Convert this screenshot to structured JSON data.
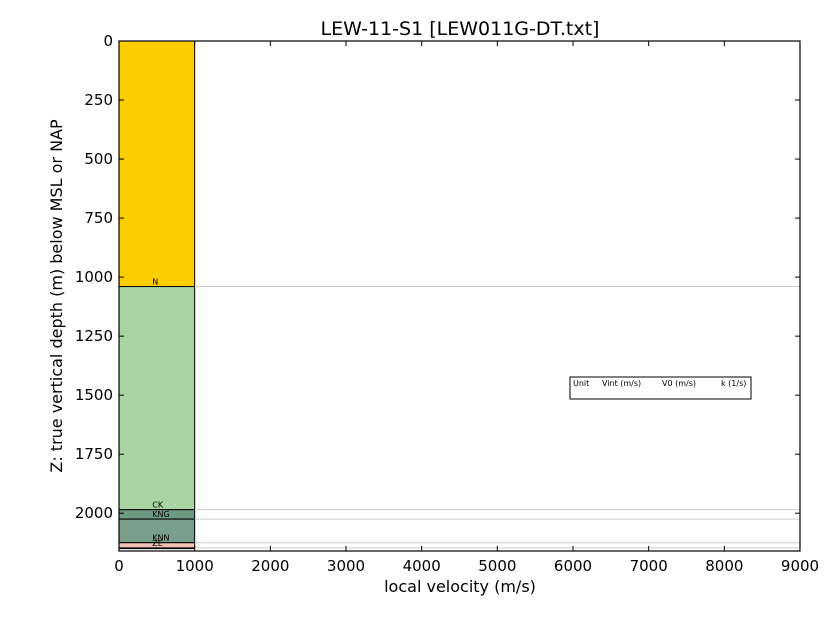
{
  "chart_data": {
    "type": "bar",
    "title": "LEW-11-S1 [LEW011G-DT.txt]",
    "xlabel": "local velocity (m/s)",
    "ylabel": "Z: true vertical depth (m) below MSL or NAP",
    "xlim": [
      0,
      9000
    ],
    "ylim": [
      2160,
      0
    ],
    "y_inverted": true,
    "grid": false,
    "x_ticks": [
      "0",
      "1000",
      "2000",
      "3000",
      "4000",
      "5000",
      "6000",
      "7000",
      "8000",
      "9000"
    ],
    "y_ticks": [
      "0",
      "250",
      "500",
      "750",
      "1000",
      "1250",
      "1500",
      "1750",
      "2000"
    ],
    "x_tick_values": [
      0,
      1000,
      2000,
      3000,
      4000,
      5000,
      6000,
      7000,
      8000,
      9000
    ],
    "y_tick_values": [
      0,
      250,
      500,
      750,
      1000,
      1250,
      1500,
      1750,
      2000
    ],
    "layers": [
      {
        "label": "",
        "top": 0,
        "base": 1040,
        "velocity": 1000,
        "color": "#fcce00"
      },
      {
        "label": "N",
        "top": 1040,
        "base": 1985,
        "velocity": 1000,
        "color": "#a8d5a2"
      },
      {
        "label": "CK",
        "top": 1985,
        "base": 2025,
        "velocity": 1000,
        "color": "#6d9b82"
      },
      {
        "label": "KNG",
        "top": 2025,
        "base": 2125,
        "velocity": 1000,
        "color": "#7a9e8c"
      },
      {
        "label": "KNN",
        "top": 2125,
        "base": 2147,
        "velocity": 1000,
        "color": "#f1c1b1"
      },
      {
        "label": "ZE",
        "top": 2147,
        "base": 2150,
        "velocity": 1000,
        "color": "#f1c1b1"
      }
    ],
    "boundaries": [
      1040,
      1985,
      2025,
      2125,
      2147
    ],
    "legend": {
      "placement": "right",
      "headers": [
        "Unit",
        "Vint (m/s)",
        "V0 (m/s)",
        "k (1/s)"
      ]
    }
  }
}
